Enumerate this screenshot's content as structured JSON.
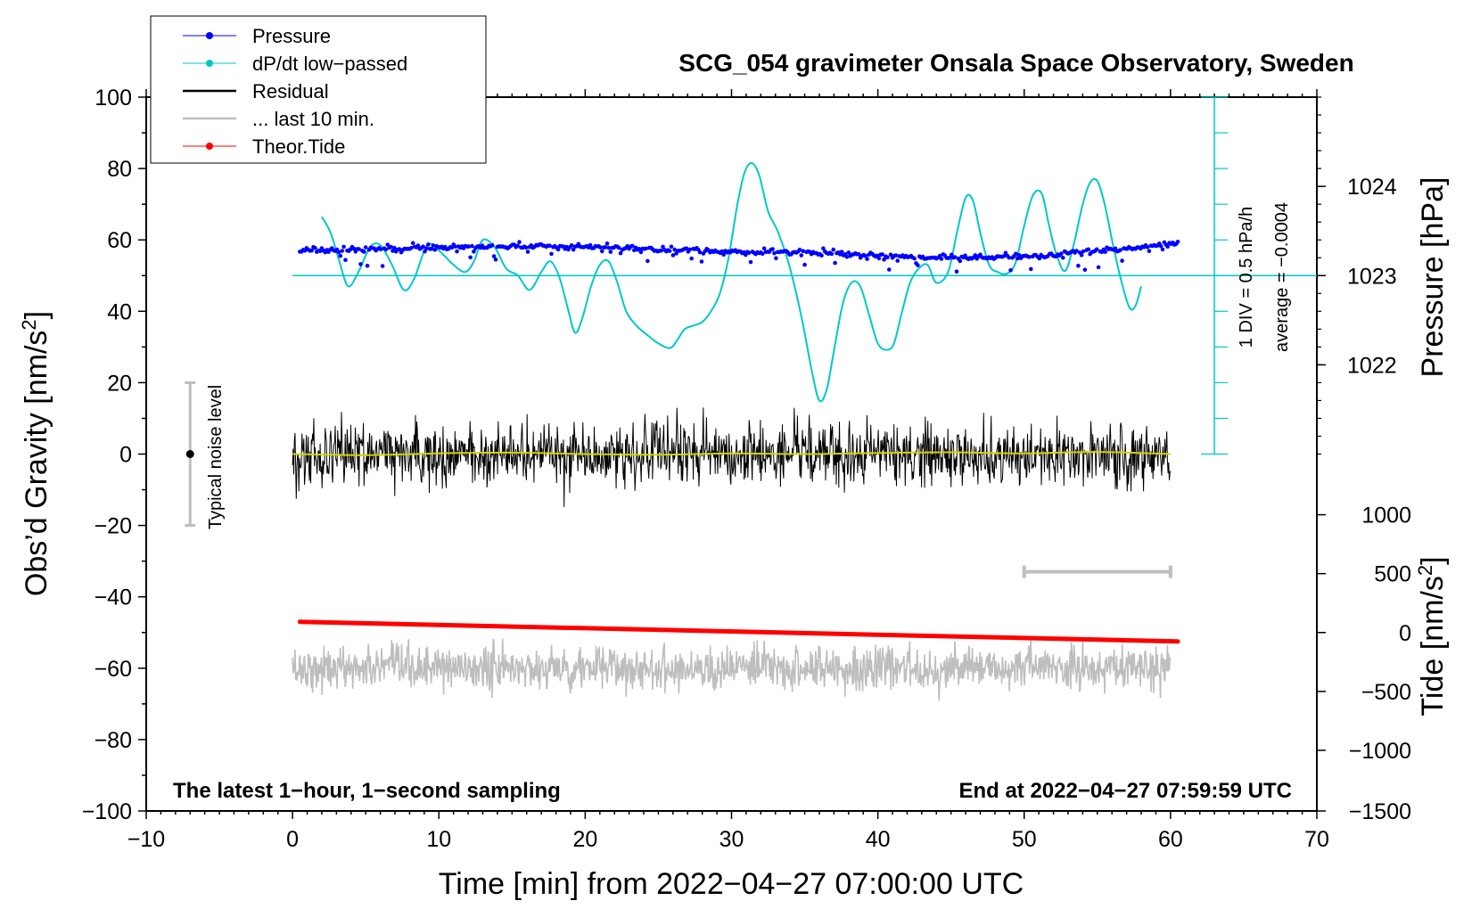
{
  "chart_data": {
    "type": "line",
    "title": "SCG_054 gravimeter Onsala Space Observatory, Sweden",
    "xlabel": "Time [min] from 2022−04−27 07:00:00 UTC",
    "ylabel_prefix": "Obs’d Gravity [nm/s",
    "ylabel_sup": "2",
    "ylabel_suffix": "]",
    "xlim": [
      -10,
      70
    ],
    "ylim": [
      -100,
      100
    ],
    "xticks": [
      -10,
      0,
      10,
      20,
      30,
      40,
      50,
      60,
      70
    ],
    "xtick_labels": [
      "−10",
      "0",
      "10",
      "20",
      "30",
      "40",
      "50",
      "60",
      "70"
    ],
    "yticks": [
      100,
      80,
      60,
      40,
      20,
      0,
      -20,
      -40,
      -60,
      -80,
      -100
    ],
    "ytick_labels": [
      "100",
      "80",
      "60",
      "40",
      "20",
      "0",
      "−20",
      "−40",
      "−60",
      "−80",
      "−100"
    ],
    "pressure_axis": {
      "label": "Pressure [hPa]",
      "ticks": [
        {
          "value": 1024,
          "label": "1024",
          "gravity_y": 75
        },
        {
          "value": 1023,
          "label": "1023",
          "gravity_y": 50
        },
        {
          "value": 1022,
          "label": "1022",
          "gravity_y": 25
        }
      ]
    },
    "tide_axis": {
      "label_prefix": "Tide [nm/s",
      "label_sup": "2",
      "label_suffix": "]",
      "ticks": [
        {
          "value": 1000,
          "label": "1000",
          "gravity_y": -17
        },
        {
          "value": 500,
          "label": "500",
          "gravity_y": -33.5
        },
        {
          "value": 0,
          "label": "0",
          "gravity_y": -50
        },
        {
          "value": -500,
          "label": "−500",
          "gravity_y": -66.5
        },
        {
          "value": -1000,
          "label": "−1000",
          "gravity_y": -83
        },
        {
          "value": -1500,
          "label": "−1500",
          "gravity_y": -100
        }
      ]
    },
    "dpdt_scale": {
      "x_position": 63,
      "y_from": 0,
      "y_to": 100,
      "baseline": 50,
      "div_label": "1 DIV = 0.5 hPa/h",
      "average_label": "average = −0.0004"
    },
    "noise_bar": {
      "label": "Typical noise level",
      "x": -7,
      "y_low": -20,
      "y_high": 20,
      "center": 0
    },
    "last10_bracket": {
      "x_from": 50,
      "x_to": 60,
      "y": -33
    },
    "notes": {
      "left": "The latest 1−hour, 1−second sampling",
      "right": "End at 2022−04−27 07:59:59 UTC"
    },
    "legend": {
      "position": "top-left",
      "entries": [
        {
          "label": "Pressure",
          "color": "#0000ff",
          "marker": "dot"
        },
        {
          "label": "dP/dt low−passed",
          "color": "#00c8c8",
          "marker": "dot"
        },
        {
          "label": "Residual",
          "color": "#000000",
          "marker": "line"
        },
        {
          "label": "... last 10 min.",
          "color": "#bebebe",
          "marker": "line"
        },
        {
          "label": "Theor.Tide",
          "color": "#ff0000",
          "marker": "dot"
        }
      ]
    },
    "series": [
      {
        "name": "Pressure",
        "color": "#0000ff",
        "style": "dots",
        "x": [
          0.5,
          3,
          6,
          9,
          12,
          15,
          18,
          20,
          24,
          28,
          31,
          33,
          36,
          39,
          42,
          45,
          48,
          51,
          54,
          57,
          60.5
        ],
        "y": [
          57,
          57.2,
          57.5,
          57.8,
          58,
          58.2,
          58.2,
          58,
          57.5,
          57,
          56.5,
          56.7,
          56.3,
          55.7,
          55.2,
          55,
          55.1,
          55.5,
          56.5,
          57.5,
          59
        ]
      },
      {
        "name": "dP/dt low−passed",
        "color": "#00c8c8",
        "style": "line",
        "x": [
          2,
          2.6,
          3.2,
          3.8,
          4.5,
          5.3,
          6,
          6.8,
          7.6,
          8.3,
          9.2,
          10,
          11,
          11.8,
          12.4,
          13,
          13.8,
          14.6,
          15.4,
          16.2,
          17,
          17.6,
          18.2,
          18.8,
          19.3,
          19.8,
          20.4,
          21,
          21.6,
          22.2,
          22.8,
          23.5,
          24.2,
          25,
          25.8,
          26.3,
          26.8,
          27.4,
          28,
          28.6,
          29.2,
          29.8,
          30.4,
          30.9,
          31.4,
          31.9,
          32.5,
          33.2,
          34,
          34.8,
          35.5,
          36,
          36.5,
          37,
          37.6,
          38.2,
          38.8,
          39.4,
          40,
          40.6,
          41.1,
          41.6,
          42.2,
          42.8,
          43.4,
          44,
          44.8,
          45.4,
          46,
          46.5,
          47,
          47.6,
          48.2,
          48.8,
          49.4,
          50,
          50.6,
          51.2,
          51.7,
          52.2,
          52.8,
          53.4,
          54,
          54.5,
          55,
          55.5,
          56.1,
          56.7,
          57.2,
          57.6,
          58
        ],
        "y": [
          66.5,
          62,
          54,
          47,
          51,
          58,
          58.5,
          53,
          46,
          49,
          58.5,
          57,
          53,
          51,
          54,
          60,
          58,
          52,
          50,
          46,
          51,
          54,
          50,
          41,
          34,
          38,
          47,
          53,
          54,
          48,
          40,
          36,
          33.5,
          31,
          29.7,
          32,
          35,
          36,
          37,
          40,
          45,
          55,
          70,
          79,
          81.5,
          78,
          68,
          62,
          52,
          38,
          23,
          15,
          18,
          29,
          42,
          48,
          47,
          39,
          31,
          29.2,
          31,
          39,
          48,
          52,
          53,
          48,
          51,
          62,
          71.8,
          71,
          62,
          53,
          51,
          50.5,
          53.5,
          64,
          72.5,
          73,
          64,
          56,
          51.3,
          59,
          70,
          76,
          76.5,
          70,
          58,
          47.5,
          41,
          41.5,
          47
        ]
      },
      {
        "name": "Residual",
        "color": "#000000",
        "style": "noise",
        "x_start": 0,
        "x_end": 60,
        "center": 0,
        "amplitude": 8,
        "max_amplitude": 16
      },
      {
        "name": "Residual smoothed",
        "color": "#d2d200",
        "style": "line",
        "x": [
          0,
          5,
          10,
          15,
          20,
          25,
          30,
          35,
          40,
          45,
          50,
          55,
          60
        ],
        "y": [
          0,
          -0.3,
          0.2,
          0.4,
          0,
          -0.2,
          0.2,
          0,
          0.3,
          0.5,
          0.2,
          0.6,
          0
        ]
      },
      {
        "name": "... last 10 min.",
        "color": "#bebebe",
        "style": "noise",
        "x_start": 0,
        "x_end": 60,
        "center": -60,
        "amplitude": 5.5,
        "max_amplitude": 16
      },
      {
        "name": "Theor.Tide",
        "color": "#ff0000",
        "style": "thickline",
        "x": [
          0.5,
          60.5
        ],
        "y": [
          -47,
          -52.5
        ]
      }
    ]
  }
}
